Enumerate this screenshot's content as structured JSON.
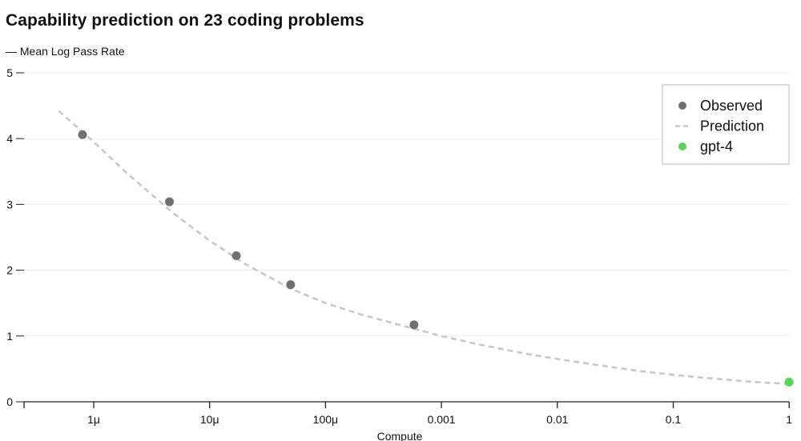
{
  "chart_data": {
    "type": "scatter",
    "title": "Capability prediction on 23 coding problems",
    "subtitle": "— Mean Log Pass Rate",
    "xlabel": "Compute",
    "ylabel": "Mean Log Pass Rate",
    "x_scale": "log",
    "xlim": [
      3e-07,
      1
    ],
    "ylim": [
      0,
      5
    ],
    "y_ticks": [
      0,
      1,
      2,
      3,
      4,
      5
    ],
    "x_ticks": [
      {
        "value": 1e-06,
        "label": "1μ"
      },
      {
        "value": 1e-05,
        "label": "10μ"
      },
      {
        "value": 0.0001,
        "label": "100μ"
      },
      {
        "value": 0.001,
        "label": "0.001"
      },
      {
        "value": 0.01,
        "label": "0.01"
      },
      {
        "value": 0.1,
        "label": "0.1"
      },
      {
        "value": 1,
        "label": "1"
      }
    ],
    "series": [
      {
        "name": "Observed",
        "kind": "scatter",
        "color": "#707070",
        "x": [
          8e-07,
          4.5e-06,
          1.7e-05,
          5e-05,
          0.00058
        ],
        "y": [
          4.06,
          3.04,
          2.22,
          1.78,
          1.17
        ]
      },
      {
        "name": "Prediction",
        "kind": "dashed-line",
        "color": "#c8c8c8",
        "x": [
          5e-07,
          1e-06,
          2e-06,
          5e-06,
          1e-05,
          2e-05,
          5e-05,
          0.0001,
          0.0002,
          0.0005,
          0.001,
          0.002,
          0.005,
          0.01,
          0.02,
          0.05,
          0.1,
          0.2,
          0.5,
          1
        ],
        "y": [
          4.42,
          3.95,
          3.45,
          2.85,
          2.45,
          2.1,
          1.72,
          1.5,
          1.33,
          1.14,
          1.0,
          0.88,
          0.74,
          0.65,
          0.57,
          0.47,
          0.41,
          0.36,
          0.3,
          0.27
        ]
      },
      {
        "name": "gpt-4",
        "kind": "scatter",
        "color": "#55d655",
        "x": [
          1
        ],
        "y": [
          0.3
        ]
      }
    ],
    "legend": {
      "position": "top-right",
      "entries": [
        "Observed",
        "Prediction",
        "gpt-4"
      ]
    },
    "grid": true
  }
}
